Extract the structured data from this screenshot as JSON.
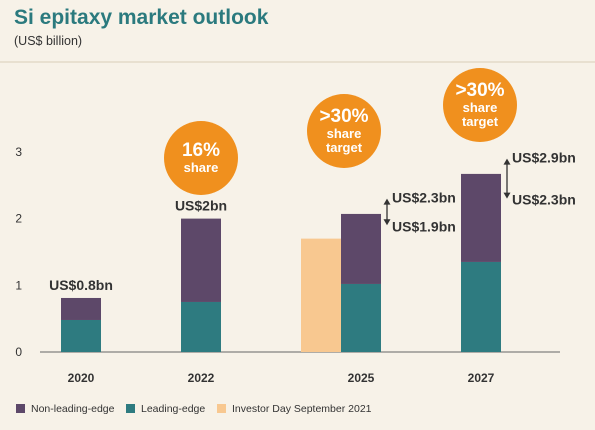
{
  "colors": {
    "background": "#f7f2e8",
    "title": "#2b7a7e",
    "text": "#333333",
    "non_leading_edge": "#5d4869",
    "leading_edge": "#2e7b80",
    "investor_day": "#f8c890",
    "bubble": "#f0901e",
    "axis": "#666666"
  },
  "chart_data": {
    "type": "bar",
    "stacked": true,
    "title": "Si epitaxy market outlook",
    "subtitle": "(US$ billion)",
    "categories": [
      "2020",
      "2022",
      "2025",
      "2027"
    ],
    "series": [
      {
        "name": "Leading-edge",
        "values": [
          0.48,
          0.75,
          1.02,
          1.35
        ]
      },
      {
        "name": "Non-leading-edge",
        "values": [
          0.33,
          1.25,
          1.05,
          1.32
        ]
      },
      {
        "name": "Investor Day September 2021",
        "values": [
          null,
          null,
          1.7,
          null
        ]
      }
    ],
    "yticks": [
      0,
      1,
      2,
      3
    ],
    "ylim": [
      0,
      3.3
    ],
    "grid": false,
    "legend_position": "bottom",
    "value_labels": [
      {
        "category": "2020",
        "text": "US$0.8bn"
      },
      {
        "category": "2022",
        "text": "US$2bn"
      }
    ],
    "range_labels": [
      {
        "category": "2025",
        "high": "US$2.3bn",
        "low": "US$1.9bn",
        "high_value": 2.3,
        "low_value": 1.9
      },
      {
        "category": "2027",
        "high": "US$2.9bn",
        "low": "US$2.3bn",
        "high_value": 2.9,
        "low_value": 2.3
      }
    ],
    "bubbles": [
      {
        "category": "2022",
        "big": "16%",
        "small": [
          "share"
        ]
      },
      {
        "category": "2025",
        "big": ">30%",
        "small": [
          "share",
          "target"
        ]
      },
      {
        "category": "2027",
        "big": ">30%",
        "small": [
          "share",
          "target"
        ]
      }
    ]
  }
}
